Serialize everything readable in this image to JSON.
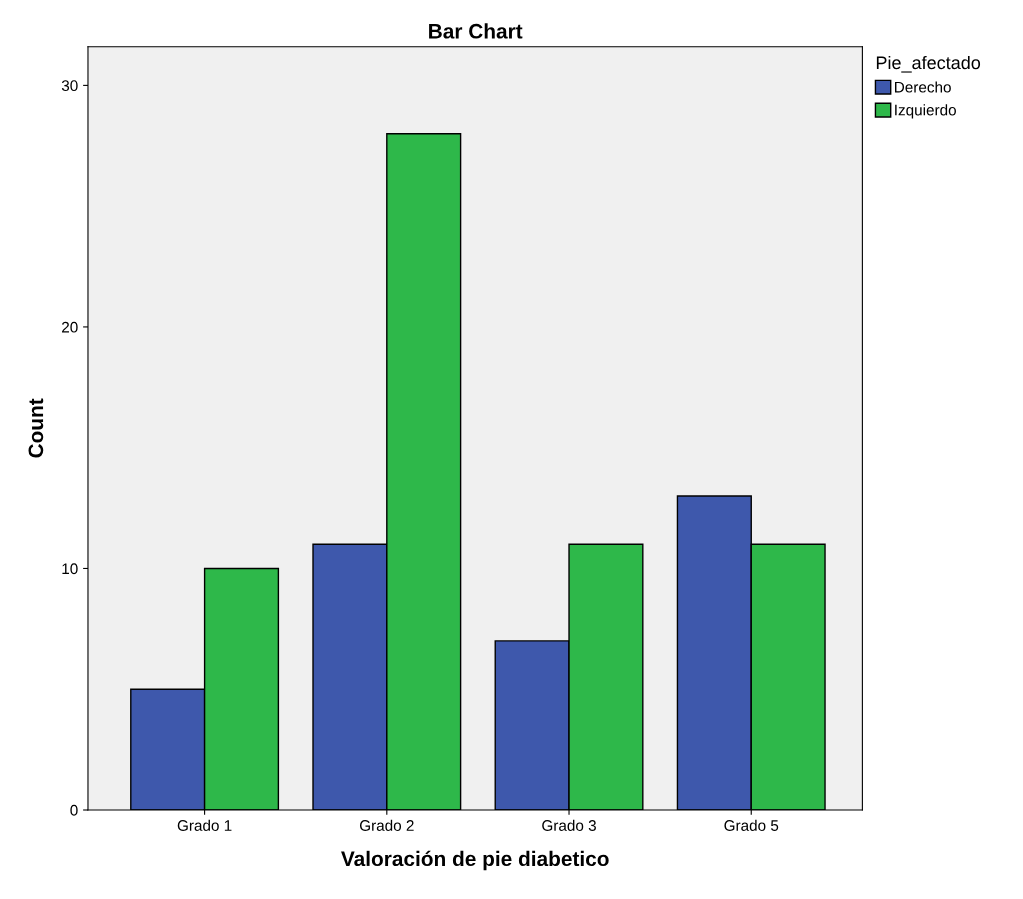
{
  "chart_data": {
    "type": "bar",
    "title": "Bar Chart",
    "xlabel": "Valoración de pie diabetico",
    "ylabel": "Count",
    "legend_title": "Pie_afectado",
    "categories": [
      "Grado 1",
      "Grado 2",
      "Grado 3",
      "Grado 5"
    ],
    "series": [
      {
        "name": "Derecho",
        "color": "#3e58ac",
        "values": [
          5,
          11,
          7,
          13
        ]
      },
      {
        "name": "Izquierdo",
        "color": "#2eb84a",
        "values": [
          10,
          28,
          11,
          11
        ]
      }
    ],
    "ylim": [
      0,
      31.6
    ],
    "yticks": [
      0,
      10,
      20,
      30
    ],
    "grid": false,
    "legend": "top right"
  }
}
